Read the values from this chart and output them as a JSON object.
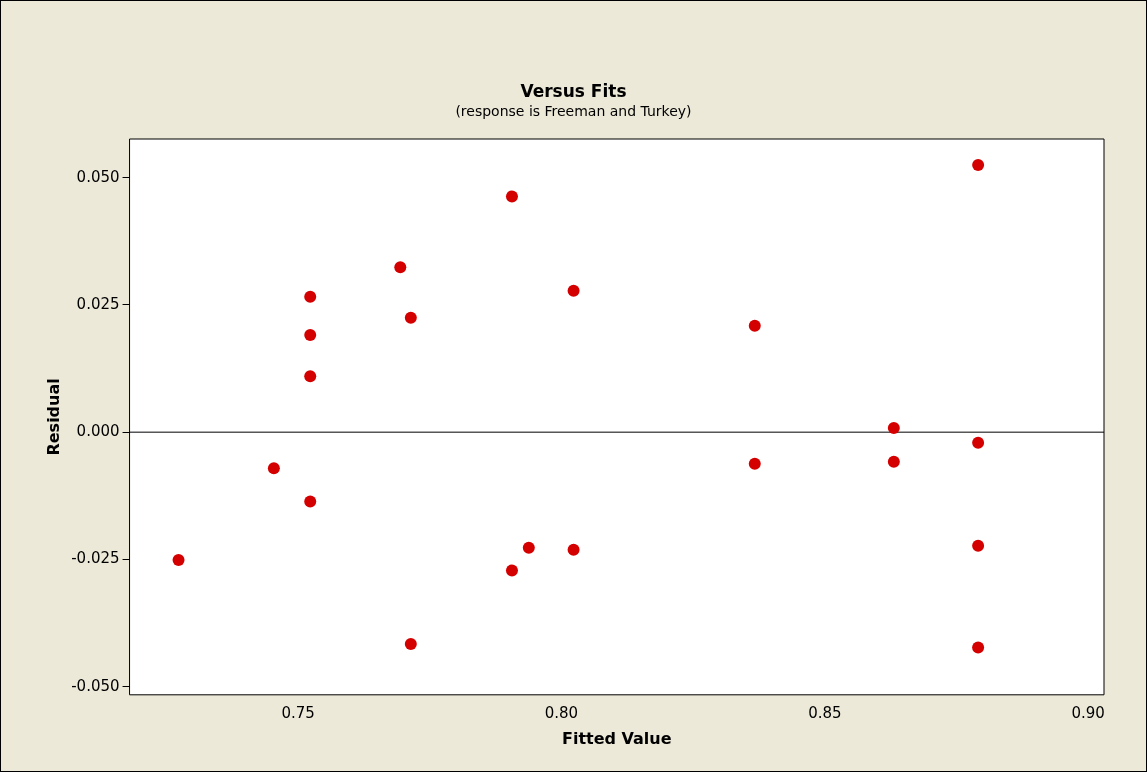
{
  "chart_data": {
    "type": "scatter",
    "title": "Versus Fits",
    "subtitle": "(response is Freeman and Turkey)",
    "xlabel": "Fitted Value",
    "ylabel": "Residual",
    "x": [
      0.7273,
      0.7454,
      0.7523,
      0.7523,
      0.7523,
      0.7523,
      0.7694,
      0.7714,
      0.7714,
      0.7906,
      0.7906,
      0.7938,
      0.8023,
      0.8023,
      0.8367,
      0.8367,
      0.8631,
      0.8631,
      0.8791,
      0.8791,
      0.8791,
      0.8791
    ],
    "series": [
      {
        "color": "#d40000",
        "values": [
          -0.0251,
          -0.0071,
          0.0266,
          0.0191,
          0.011,
          -0.0136,
          0.0324,
          0.0225,
          -0.0416,
          0.0463,
          -0.0272,
          -0.0227,
          0.0278,
          -0.0231,
          0.0209,
          -0.0062,
          0.0008,
          -0.0058,
          0.0525,
          -0.0021,
          -0.0223,
          -0.0423
        ]
      }
    ],
    "xlim": [
      0.718,
      0.903
    ],
    "xticks": [
      {
        "value": 0.75,
        "label": "0.75"
      },
      {
        "value": 0.8,
        "label": "0.80"
      },
      {
        "value": 0.85,
        "label": "0.85"
      },
      {
        "value": 0.9,
        "label": "0.90"
      }
    ],
    "ylim": [
      -0.0516,
      0.0576
    ],
    "yticks": [
      {
        "value": -0.05,
        "label": "-0.050"
      },
      {
        "value": -0.025,
        "label": "-0.025"
      },
      {
        "value": 0,
        "label": "0.000"
      },
      {
        "value": 0.025,
        "label": "0.025"
      },
      {
        "value": 0.05,
        "label": "0.050"
      }
    ],
    "ref_lines": [
      {
        "axis": "y",
        "value": 0,
        "color": "#000000"
      }
    ],
    "grid": false,
    "legend": false,
    "marker": "circle"
  }
}
